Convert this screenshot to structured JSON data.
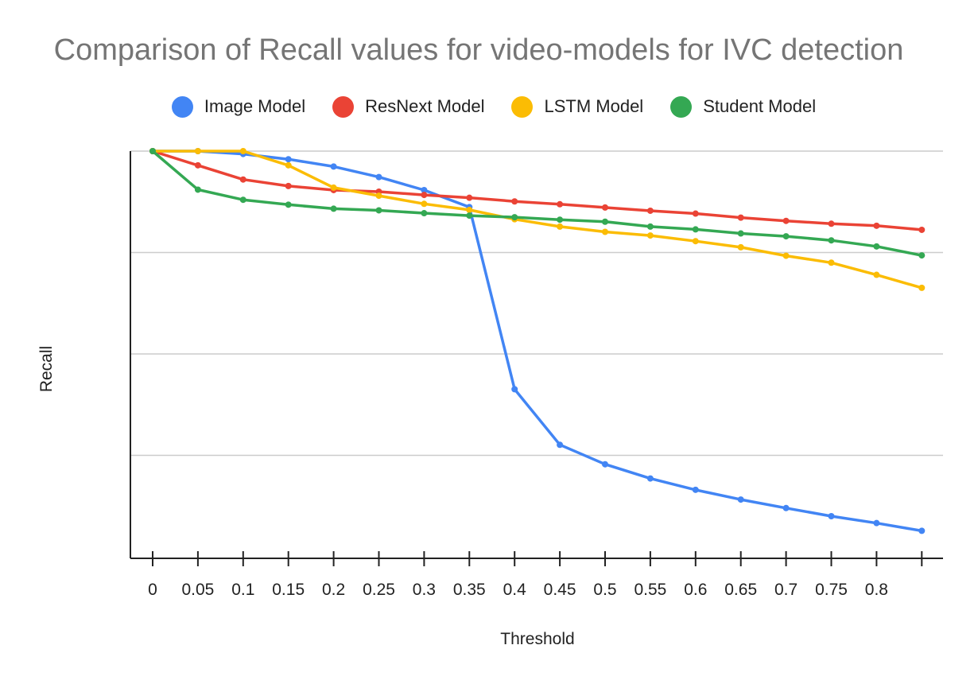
{
  "chart_data": {
    "type": "line",
    "title": "Comparison of Recall values for video-models for IVC detection",
    "xlabel": "Threshold",
    "ylabel": "Recall",
    "categories": [
      "0",
      "0.05",
      "0.1",
      "0.15",
      "0.2",
      "0.25",
      "0.3",
      "0.35",
      "0.4",
      "0.45",
      "0.5",
      "0.55",
      "0.6",
      "0.65",
      "0.7",
      "0.75",
      "0.8",
      ""
    ],
    "ylim": [
      0,
      1
    ],
    "gridlines": [
      0.25,
      0.5,
      0.75,
      1.0
    ],
    "series": [
      {
        "name": "Image Model",
        "color": "#4285F4",
        "values": [
          1.0,
          1.0,
          0.993,
          0.98,
          0.962,
          0.936,
          0.904,
          0.862,
          0.413,
          0.276,
          0.228,
          0.193,
          0.165,
          0.141,
          0.12,
          0.1,
          0.083,
          0.064
        ]
      },
      {
        "name": "ResNext Model",
        "color": "#EA4335",
        "values": [
          1.0,
          0.965,
          0.93,
          0.914,
          0.904,
          0.9,
          0.892,
          0.885,
          0.876,
          0.869,
          0.861,
          0.853,
          0.846,
          0.836,
          0.828,
          0.821,
          0.816,
          0.806
        ]
      },
      {
        "name": "LSTM Model",
        "color": "#FBBC04",
        "values": [
          1.0,
          1.0,
          1.0,
          0.965,
          0.91,
          0.89,
          0.87,
          0.855,
          0.832,
          0.814,
          0.801,
          0.792,
          0.778,
          0.763,
          0.742,
          0.725,
          0.695,
          0.663
        ]
      },
      {
        "name": "Student Model",
        "color": "#34A853",
        "values": [
          1.0,
          0.905,
          0.88,
          0.868,
          0.858,
          0.854,
          0.847,
          0.841,
          0.837,
          0.831,
          0.826,
          0.814,
          0.807,
          0.797,
          0.79,
          0.78,
          0.765,
          0.743
        ]
      }
    ]
  }
}
